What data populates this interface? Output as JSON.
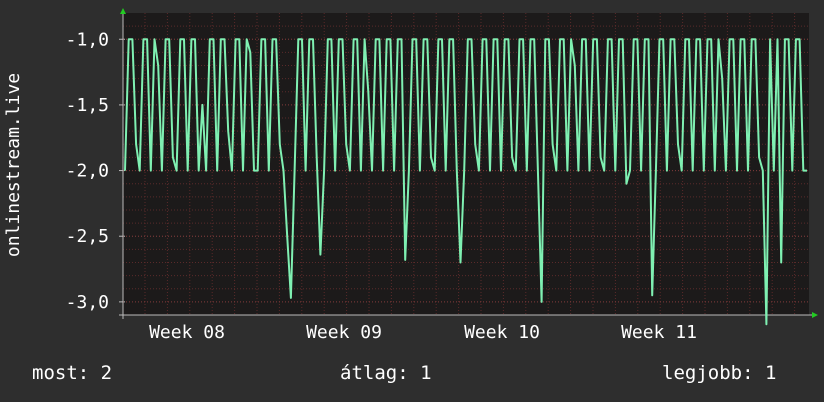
{
  "chart_data": {
    "type": "line",
    "ylabel": "onlinestream.live",
    "y_ticks": [
      "-1,0",
      "-1,5",
      "-2,0",
      "-2,5",
      "-3,0"
    ],
    "y_tick_values": [
      -1.0,
      -1.5,
      -2.0,
      -2.5,
      -3.0
    ],
    "x_ticks": [
      "Week 08",
      "Week 09",
      "Week 10",
      "Week 11"
    ],
    "ylim": [
      -3.1,
      -0.8
    ],
    "grid": true,
    "colors": {
      "line": "#7ff0b2",
      "background": "#2e2e2e",
      "plot": "#1c1a1a",
      "grid": "#5a2a2a",
      "axis_arrow": "#22cc22"
    },
    "series": [
      {
        "values": [
          -2.0,
          -1.0,
          -1.0,
          -1.8,
          -2.0,
          -1.0,
          -1.0,
          -2.0,
          -1.0,
          -1.2,
          -2.0,
          -1.0,
          -1.0,
          -1.9,
          -2.0,
          -1.0,
          -1.0,
          -2.0,
          -1.0,
          -1.0,
          -2.0,
          -1.5,
          -2.0,
          -1.0,
          -1.0,
          -2.0,
          -1.0,
          -1.0,
          -1.7,
          -2.0,
          -1.0,
          -1.0,
          -2.0,
          -1.0,
          -1.1,
          -2.0,
          -2.0,
          -1.0,
          -1.0,
          -2.0,
          -1.0,
          -1.0,
          -1.8,
          -2.0,
          -2.5,
          -2.97,
          -2.0,
          -1.0,
          -1.0,
          -2.0,
          -1.0,
          -1.0,
          -1.9,
          -2.64,
          -2.0,
          -1.0,
          -1.0,
          -2.0,
          -1.0,
          -1.0,
          -1.8,
          -2.0,
          -1.0,
          -1.0,
          -2.0,
          -1.0,
          -1.4,
          -2.0,
          -1.0,
          -1.0,
          -2.0,
          -1.0,
          -1.0,
          -2.0,
          -1.0,
          -1.0,
          -2.68,
          -2.0,
          -1.0,
          -1.0,
          -2.0,
          -1.0,
          -1.0,
          -1.9,
          -2.0,
          -1.0,
          -1.0,
          -2.0,
          -1.0,
          -1.0,
          -2.0,
          -2.7,
          -2.0,
          -1.0,
          -1.0,
          -1.8,
          -2.0,
          -1.0,
          -1.0,
          -2.0,
          -1.0,
          -1.0,
          -2.0,
          -1.0,
          -1.0,
          -1.9,
          -2.0,
          -1.0,
          -1.0,
          -2.0,
          -1.0,
          -1.0,
          -2.0,
          -3.0,
          -1.0,
          -1.0,
          -1.8,
          -2.0,
          -1.0,
          -1.0,
          -2.0,
          -1.0,
          -1.2,
          -2.0,
          -1.0,
          -1.0,
          -2.0,
          -1.0,
          -1.0,
          -1.9,
          -2.0,
          -1.0,
          -1.0,
          -2.0,
          -1.0,
          -1.0,
          -2.1,
          -2.0,
          -1.0,
          -1.0,
          -2.0,
          -1.0,
          -1.0,
          -2.95,
          -2.0,
          -1.0,
          -1.0,
          -2.0,
          -1.0,
          -1.0,
          -1.8,
          -2.0,
          -1.0,
          -1.0,
          -2.0,
          -1.0,
          -1.0,
          -2.0,
          -1.0,
          -1.0,
          -2.0,
          -1.0,
          -1.3,
          -2.0,
          -1.0,
          -1.0,
          -2.0,
          -1.0,
          -1.0,
          -2.0,
          -1.0,
          -1.0,
          -1.9,
          -2.0,
          -3.17,
          -1.0,
          -2.0,
          -1.0,
          -2.7,
          -1.0,
          -1.0,
          -2.0,
          -1.0,
          -1.0,
          -2.0,
          -2.0
        ]
      }
    ]
  },
  "footer": {
    "current": "most: 2",
    "average": "átlag: 1",
    "best": "legjobb: 1"
  }
}
